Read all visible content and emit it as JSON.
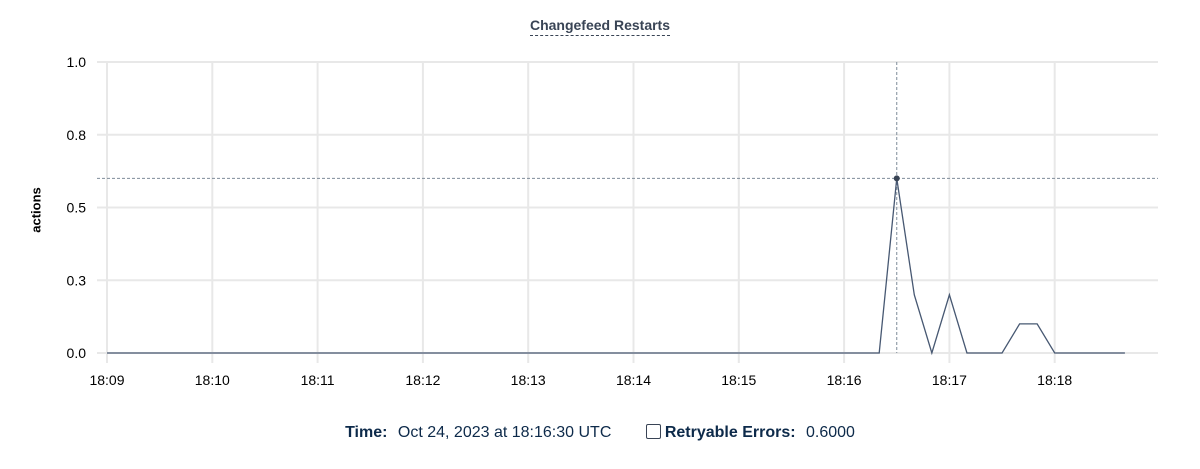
{
  "chart_data": {
    "type": "line",
    "title": "Changefeed Restarts",
    "ylabel": "actions",
    "xlabel": "",
    "ylim": [
      0,
      1.0
    ],
    "yticks": [
      0,
      0.25,
      0.5,
      0.75,
      1.0
    ],
    "ytick_labels": [
      "0.0",
      "0.3",
      "0.5",
      "0.8",
      "1.0"
    ],
    "xlim": [
      "18:09:00",
      "18:18:40"
    ],
    "xtick_labels": [
      "18:09",
      "18:10",
      "18:11",
      "18:12",
      "18:13",
      "18:14",
      "18:15",
      "18:16",
      "18:17",
      "18:18"
    ],
    "grid": true,
    "series": [
      {
        "name": "Retryable Errors",
        "color": "#475872",
        "x": [
          "18:09:00",
          "18:16:20",
          "18:16:30",
          "18:16:40",
          "18:16:50",
          "18:17:00",
          "18:17:10",
          "18:17:30",
          "18:17:40",
          "18:17:50",
          "18:18:00",
          "18:18:40"
        ],
        "y": [
          0,
          0,
          0.6,
          0.2,
          0,
          0.2,
          0,
          0,
          0.1,
          0.1,
          0,
          0
        ]
      }
    ],
    "hover": {
      "x": "18:16:30",
      "y": 0.6
    }
  },
  "legend": {
    "time_label": "Time:",
    "time_value": "Oct 24, 2023 at 18:16:30 UTC",
    "series_label": "Retryable Errors:",
    "series_value": "0.6000"
  }
}
